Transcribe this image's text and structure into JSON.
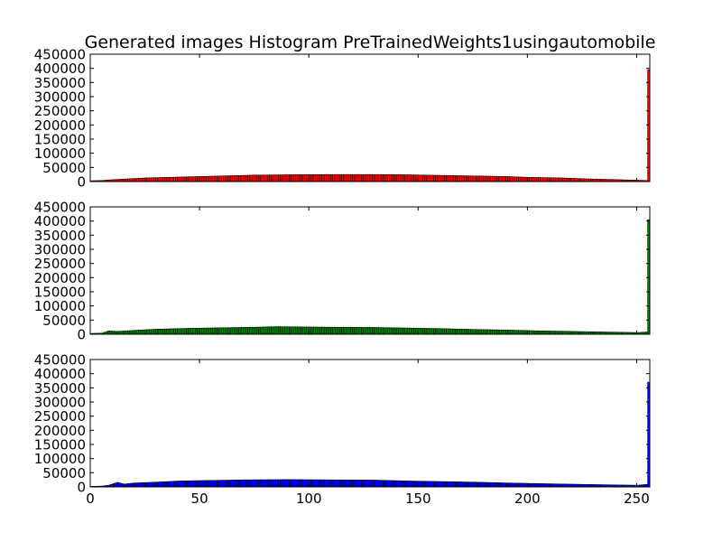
{
  "figure": {
    "title": "Generated images Histogram PreTrainedWeights1usingautomobile"
  },
  "chart_data": [
    {
      "type": "bar",
      "title": "Generated images Histogram PreTrainedWeights1usingautomobile",
      "xlabel": "",
      "ylabel": "",
      "color": "#ff0000",
      "xlim": [
        0,
        256
      ],
      "ylim": [
        0,
        450000
      ],
      "yticks": [
        0,
        50000,
        100000,
        150000,
        200000,
        250000,
        300000,
        350000,
        400000,
        450000
      ],
      "xticks": [
        0,
        50,
        100,
        150,
        200,
        250
      ],
      "show_xtick_labels": false,
      "anchors": [
        [
          0,
          3000
        ],
        [
          5,
          4000
        ],
        [
          8,
          6000
        ],
        [
          15,
          9000
        ],
        [
          25,
          13000
        ],
        [
          35,
          15000
        ],
        [
          45,
          17000
        ],
        [
          60,
          20000
        ],
        [
          75,
          23000
        ],
        [
          90,
          24000
        ],
        [
          110,
          25000
        ],
        [
          130,
          25000
        ],
        [
          145,
          24000
        ],
        [
          160,
          22000
        ],
        [
          175,
          20000
        ],
        [
          190,
          18000
        ],
        [
          200,
          15000
        ],
        [
          215,
          13000
        ],
        [
          225,
          10000
        ],
        [
          240,
          7000
        ],
        [
          250,
          5000
        ],
        [
          254,
          4000
        ]
      ],
      "last_value": 395000,
      "grid": false,
      "legend": "none"
    },
    {
      "type": "bar",
      "title": "",
      "xlabel": "",
      "ylabel": "",
      "color": "#008000",
      "xlim": [
        0,
        256
      ],
      "ylim": [
        0,
        450000
      ],
      "yticks": [
        0,
        50000,
        100000,
        150000,
        200000,
        250000,
        300000,
        350000,
        400000,
        450000
      ],
      "xticks": [
        0,
        50,
        100,
        150,
        200,
        250
      ],
      "show_xtick_labels": false,
      "anchors": [
        [
          0,
          3000
        ],
        [
          5,
          4000
        ],
        [
          8,
          12000
        ],
        [
          12,
          10000
        ],
        [
          20,
          14000
        ],
        [
          30,
          18000
        ],
        [
          45,
          21000
        ],
        [
          60,
          23000
        ],
        [
          75,
          25000
        ],
        [
          85,
          27000
        ],
        [
          95,
          26000
        ],
        [
          110,
          25000
        ],
        [
          130,
          24000
        ],
        [
          145,
          22000
        ],
        [
          160,
          20000
        ],
        [
          175,
          17000
        ],
        [
          190,
          15000
        ],
        [
          205,
          12000
        ],
        [
          220,
          10000
        ],
        [
          235,
          8000
        ],
        [
          250,
          6000
        ],
        [
          254,
          8000
        ]
      ],
      "last_value": 405000,
      "grid": false,
      "legend": "none"
    },
    {
      "type": "bar",
      "title": "",
      "xlabel": "",
      "ylabel": "",
      "color": "#0000ff",
      "xlim": [
        0,
        256
      ],
      "ylim": [
        0,
        450000
      ],
      "yticks": [
        0,
        50000,
        100000,
        150000,
        200000,
        250000,
        300000,
        350000,
        400000,
        450000
      ],
      "xticks": [
        0,
        50,
        100,
        150,
        200,
        250
      ],
      "show_xtick_labels": true,
      "anchors": [
        [
          0,
          2000
        ],
        [
          5,
          3000
        ],
        [
          8,
          6000
        ],
        [
          12,
          16000
        ],
        [
          15,
          10000
        ],
        [
          20,
          14000
        ],
        [
          30,
          17000
        ],
        [
          40,
          21000
        ],
        [
          55,
          23000
        ],
        [
          70,
          25000
        ],
        [
          90,
          26000
        ],
        [
          110,
          25000
        ],
        [
          130,
          24000
        ],
        [
          145,
          21000
        ],
        [
          160,
          19000
        ],
        [
          175,
          17000
        ],
        [
          190,
          14000
        ],
        [
          210,
          11000
        ],
        [
          225,
          9000
        ],
        [
          240,
          7000
        ],
        [
          250,
          6000
        ],
        [
          254,
          9000
        ]
      ],
      "last_value": 370000,
      "grid": false,
      "legend": "none"
    }
  ]
}
